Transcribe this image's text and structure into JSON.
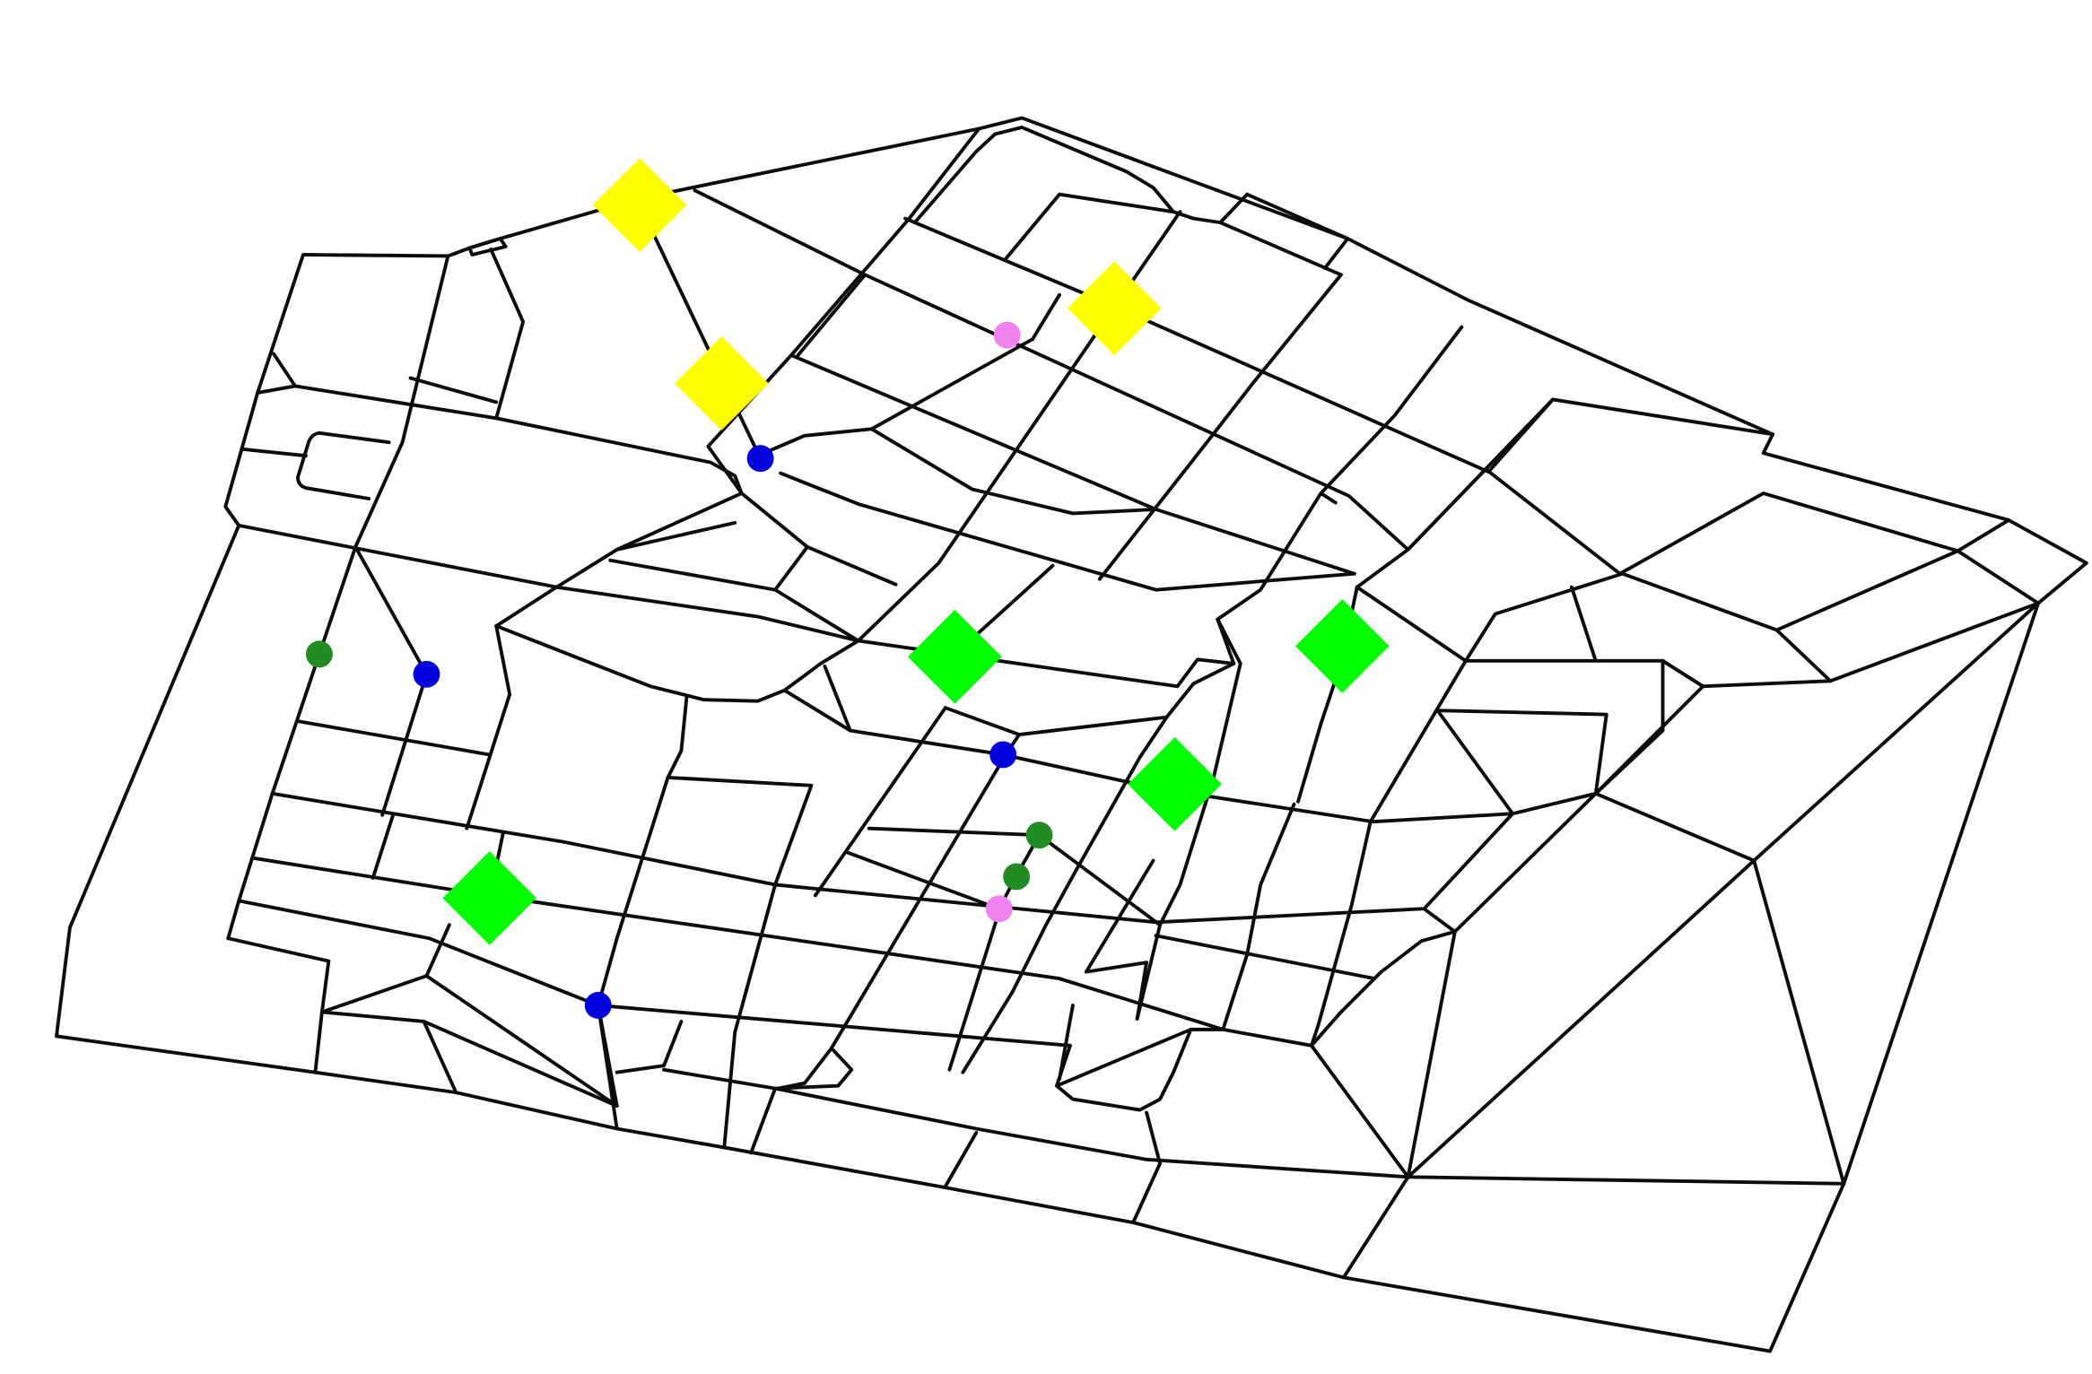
{
  "colors": {
    "background": "#ffffff",
    "road": "#000000",
    "diamond_yellow": "#ffff00",
    "diamond_green": "#00ff00",
    "dot_blue": "#0000dd",
    "dot_green": "#228b22",
    "dot_pink": "#ee82ee"
  },
  "markers": {
    "diamonds": [
      {
        "id": "yellow-diamond-1",
        "color": "yellow"
      },
      {
        "id": "yellow-diamond-2",
        "color": "yellow"
      },
      {
        "id": "yellow-diamond-3",
        "color": "yellow"
      },
      {
        "id": "green-diamond-1",
        "color": "green"
      },
      {
        "id": "green-diamond-2",
        "color": "green"
      },
      {
        "id": "green-diamond-3",
        "color": "green"
      },
      {
        "id": "green-diamond-4",
        "color": "green"
      }
    ],
    "dots": [
      {
        "id": "blue-dot-1",
        "color": "blue"
      },
      {
        "id": "blue-dot-2",
        "color": "blue"
      },
      {
        "id": "blue-dot-3",
        "color": "blue"
      },
      {
        "id": "blue-dot-4",
        "color": "blue"
      },
      {
        "id": "green-dot-1",
        "color": "green"
      },
      {
        "id": "green-dot-2",
        "color": "green"
      },
      {
        "id": "green-dot-3",
        "color": "green"
      },
      {
        "id": "pink-dot-1",
        "color": "pink"
      },
      {
        "id": "pink-dot-2",
        "color": "pink"
      }
    ]
  }
}
